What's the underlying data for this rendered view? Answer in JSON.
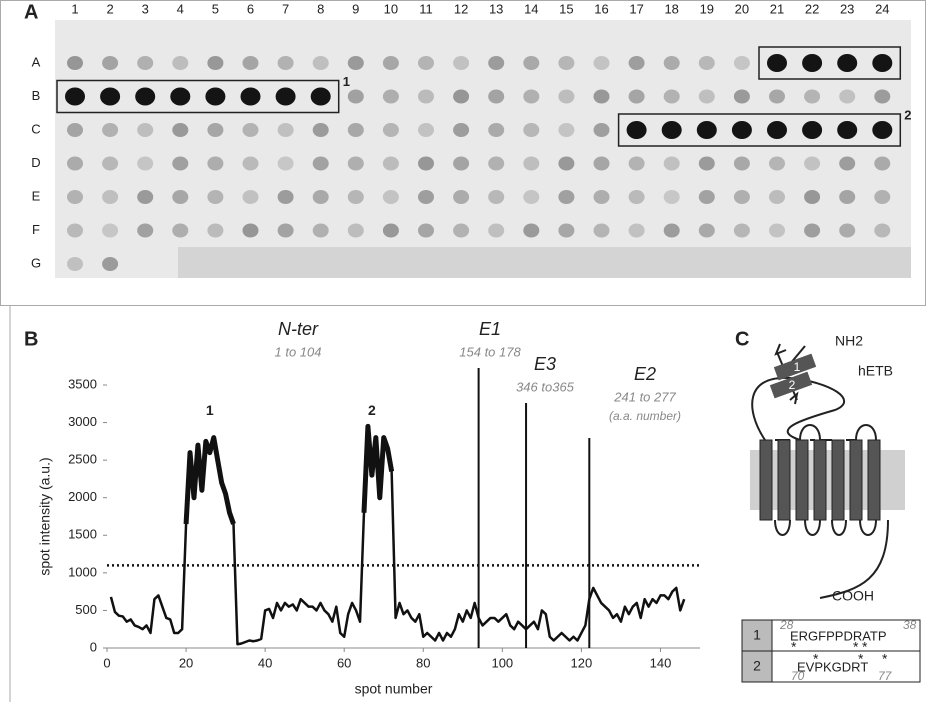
{
  "panels": {
    "a": "A",
    "b": "B",
    "c": "C"
  },
  "blot": {
    "rows": [
      "A",
      "B",
      "C",
      "D",
      "E",
      "F",
      "G"
    ],
    "columns": [
      "1",
      "2",
      "3",
      "4",
      "5",
      "6",
      "7",
      "8",
      "9",
      "10",
      "11",
      "12",
      "13",
      "14",
      "15",
      "16",
      "17",
      "18",
      "19",
      "20",
      "21",
      "22",
      "23",
      "24"
    ],
    "boxes": [
      {
        "row": 1,
        "from": 0,
        "to": 7,
        "label": "1"
      },
      {
        "row": 2,
        "from": 16,
        "to": 23,
        "label": "2"
      },
      {
        "row": 0,
        "from": 20,
        "to": 23
      }
    ]
  },
  "chart_data": {
    "type": "line",
    "x_label": "spot number",
    "y_label": "spot intensity (a.u.)",
    "xlim": [
      0,
      150
    ],
    "xticks": [
      0,
      20,
      40,
      60,
      80,
      100,
      120,
      140
    ],
    "ylim": [
      0,
      3500
    ],
    "yticks": [
      0,
      500,
      1000,
      1500,
      2000,
      2500,
      3000,
      3500
    ],
    "threshold": 1100,
    "vlines": [
      94,
      106,
      122
    ],
    "peak_labels": [
      {
        "text": "1",
        "x": 26,
        "y": 3150
      },
      {
        "text": "2",
        "x": 67,
        "y": 3150
      }
    ],
    "regions": [
      {
        "name": "N-ter",
        "range": "1 to 104"
      },
      {
        "name": "E1",
        "range": "154 to 178"
      },
      {
        "name": "E3",
        "range": "346 to365"
      },
      {
        "name": "E2",
        "range": "241 to 277",
        "note": "(a.a. number)"
      }
    ],
    "series": [
      {
        "color": "#111111",
        "x": [
          1,
          2,
          3,
          4,
          5,
          6,
          7,
          8,
          9,
          10,
          11,
          12,
          13,
          14,
          15,
          16,
          17,
          18,
          19,
          20,
          21,
          22,
          23,
          24,
          25,
          26,
          27,
          28,
          29,
          30,
          31,
          32,
          33,
          34,
          35,
          36,
          37,
          38,
          39,
          40,
          41,
          42,
          43,
          44,
          45,
          46,
          47,
          48,
          49,
          50,
          51,
          52,
          53,
          54,
          55,
          56,
          57,
          58,
          59,
          60,
          61,
          62,
          63,
          64,
          65,
          66,
          67,
          68,
          69,
          70,
          71,
          72,
          73,
          74,
          75,
          76,
          77,
          78,
          79,
          80,
          81,
          82,
          83,
          84,
          85,
          86,
          87,
          88,
          89,
          90,
          91,
          92,
          93,
          94,
          95,
          96,
          97,
          98,
          99,
          100,
          101,
          102,
          103,
          104,
          105,
          106,
          107,
          108,
          109,
          110,
          111,
          112,
          113,
          114,
          115,
          116,
          117,
          118,
          119,
          120,
          121,
          122,
          123,
          124,
          125,
          126,
          127,
          128,
          129,
          130,
          131,
          132,
          133,
          134,
          135,
          136,
          137,
          138,
          139,
          140,
          141,
          142,
          143,
          144,
          145,
          146
        ],
        "values": [
          680,
          480,
          430,
          420,
          350,
          380,
          300,
          280,
          250,
          300,
          200,
          650,
          700,
          550,
          400,
          380,
          200,
          200,
          250,
          1650,
          2600,
          2000,
          2700,
          2100,
          2750,
          2600,
          2800,
          2500,
          2200,
          2050,
          1800,
          1650,
          50,
          60,
          80,
          100,
          90,
          100,
          120,
          500,
          520,
          400,
          600,
          500,
          600,
          550,
          580,
          500,
          650,
          600,
          550,
          550,
          500,
          600,
          500,
          450,
          350,
          550,
          200,
          150,
          450,
          600,
          500,
          350,
          1800,
          2950,
          2300,
          2800,
          2000,
          2800,
          2650,
          2350,
          400,
          600,
          450,
          500,
          400,
          350,
          450,
          150,
          200,
          150,
          100,
          200,
          100,
          200,
          150,
          250,
          450,
          350,
          500,
          400,
          600,
          400,
          300,
          350,
          400,
          400,
          350,
          400,
          450,
          300,
          250,
          350,
          300,
          250,
          300,
          350,
          250,
          500,
          450,
          150,
          100,
          150,
          200,
          150,
          100,
          150,
          100,
          200,
          300,
          650,
          800,
          700,
          600,
          550,
          500,
          400,
          450,
          350,
          550,
          450,
          550,
          600,
          400,
          650,
          550,
          650,
          600,
          700,
          700,
          650,
          750,
          800,
          500,
          650
        ]
      }
    ]
  },
  "diagram": {
    "nh2": "NH2",
    "name": "hETB",
    "cooh": "COOH",
    "segments": [
      "1",
      "2"
    ],
    "table": [
      {
        "id": "1",
        "sequence": "ERGFPPDRATP",
        "start": "28",
        "end": "38"
      },
      {
        "id": "2",
        "sequence": "EVPKGDRT",
        "start": "70",
        "end": "77"
      }
    ]
  }
}
